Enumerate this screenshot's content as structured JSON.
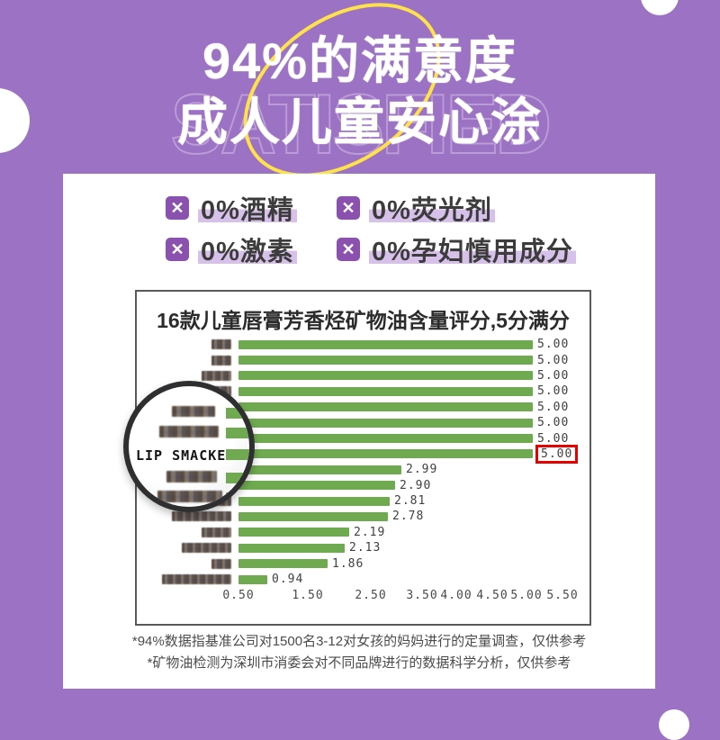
{
  "page": {
    "background_color": "#9c72c4"
  },
  "header": {
    "ghost_text": "SATISFIED",
    "title_line1": "94%的满意度",
    "title_line2": "成人儿童安心涂",
    "accent_ellipse_color": "#ffe24a"
  },
  "features": {
    "checkbox_glyph": "✕",
    "checkbox_color": "#8a52ae",
    "highlight_color": "#d7c1ea",
    "items": [
      {
        "label": "0%酒精"
      },
      {
        "label": "0%荧光剂"
      },
      {
        "label": "0%激素"
      },
      {
        "label": "0%孕妇慎用成分"
      }
    ]
  },
  "chart_data": {
    "type": "bar",
    "orientation": "horizontal",
    "title": "16款儿童唇膏芳香烃矿物油含量评分,5分满分",
    "xlabel": "",
    "ylabel": "",
    "xlim": [
      0.5,
      5.5
    ],
    "x_ticks": [
      "0.50",
      "1.50",
      "2.50",
      "3.50",
      "4.00",
      "4.50",
      "5.00",
      "5.50"
    ],
    "grid": false,
    "bar_color": "#6faa50",
    "highlight_box_color": "#e60000",
    "note": "15 of 16 brand names are pixelated/censored; only LIP SMACKE is revealed by the magnifier",
    "rows": [
      {
        "label": "censored",
        "approx_chars": 2,
        "value": 5.0,
        "value_label": "5.00"
      },
      {
        "label": "censored",
        "approx_chars": 2,
        "value": 5.0,
        "value_label": "5.00"
      },
      {
        "label": "censored",
        "approx_chars": 3,
        "value": 5.0,
        "value_label": "5.00"
      },
      {
        "label": "censored",
        "approx_chars": 4,
        "value": 5.0,
        "value_label": "5.00"
      },
      {
        "label": "censored",
        "approx_chars": 3,
        "value": 5.0,
        "value_label": "5.00"
      },
      {
        "label": "censored",
        "approx_chars": 4,
        "value": 5.0,
        "value_label": "5.00"
      },
      {
        "label": "censored",
        "approx_chars": 5,
        "value": 5.0,
        "value_label": "5.00"
      },
      {
        "label": "LIP SMACKE",
        "approx_chars": 7,
        "value": 5.0,
        "value_label": "5.00",
        "highlighted": true
      },
      {
        "label": "censored",
        "approx_chars": 3,
        "value": 2.99,
        "value_label": "2.99"
      },
      {
        "label": "censored",
        "approx_chars": 4,
        "value": 2.9,
        "value_label": "2.90"
      },
      {
        "label": "censored",
        "approx_chars": 5,
        "value": 2.81,
        "value_label": "2.81"
      },
      {
        "label": "censored",
        "approx_chars": 6,
        "value": 2.78,
        "value_label": "2.78"
      },
      {
        "label": "censored",
        "approx_chars": 3,
        "value": 2.19,
        "value_label": "2.19"
      },
      {
        "label": "censored",
        "approx_chars": 5,
        "value": 2.13,
        "value_label": "2.13"
      },
      {
        "label": "censored",
        "approx_chars": 2,
        "value": 1.86,
        "value_label": "1.86"
      },
      {
        "label": "censored",
        "approx_chars": 7,
        "value": 0.94,
        "value_label": "0.94"
      }
    ]
  },
  "magnifier": {
    "label": "LIP SMACKE"
  },
  "footnotes": {
    "line1": "*94%数据指基准公司对1500名3-12对女孩的妈妈进行的定量调查，仅供参考",
    "line2": "*矿物油检测为深圳市消委会对不同品牌进行的数据科学分析，仅供参考"
  }
}
